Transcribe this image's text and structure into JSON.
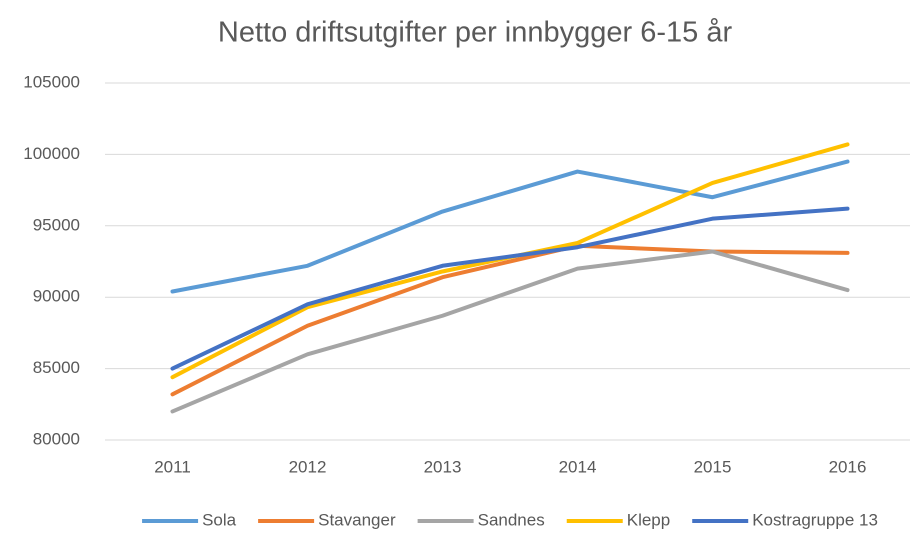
{
  "chart_data": {
    "type": "line",
    "title": "Netto driftsutgifter per innbygger 6-15 år",
    "categories": [
      "2011",
      "2012",
      "2013",
      "2014",
      "2015",
      "2016"
    ],
    "series": [
      {
        "name": "Sola",
        "color": "#5b9bd5",
        "values": [
          90400,
          92200,
          96000,
          98800,
          97000,
          99500
        ]
      },
      {
        "name": "Stavanger",
        "color": "#ed7d31",
        "values": [
          83200,
          88000,
          91400,
          93600,
          93200,
          93100
        ]
      },
      {
        "name": "Sandnes",
        "color": "#a5a5a5",
        "values": [
          82000,
          86000,
          88700,
          92000,
          93200,
          90500
        ]
      },
      {
        "name": "Klepp",
        "color": "#ffc000",
        "values": [
          84400,
          89300,
          91800,
          93800,
          98000,
          100700
        ]
      },
      {
        "name": "Kostragruppe 13",
        "color": "#4472c4",
        "values": [
          85000,
          89500,
          92200,
          93500,
          95500,
          96200
        ]
      }
    ],
    "ylim": [
      80000,
      105000
    ],
    "yticks": [
      80000,
      85000,
      90000,
      95000,
      100000,
      105000
    ],
    "grid": true,
    "legend": "bottom"
  }
}
